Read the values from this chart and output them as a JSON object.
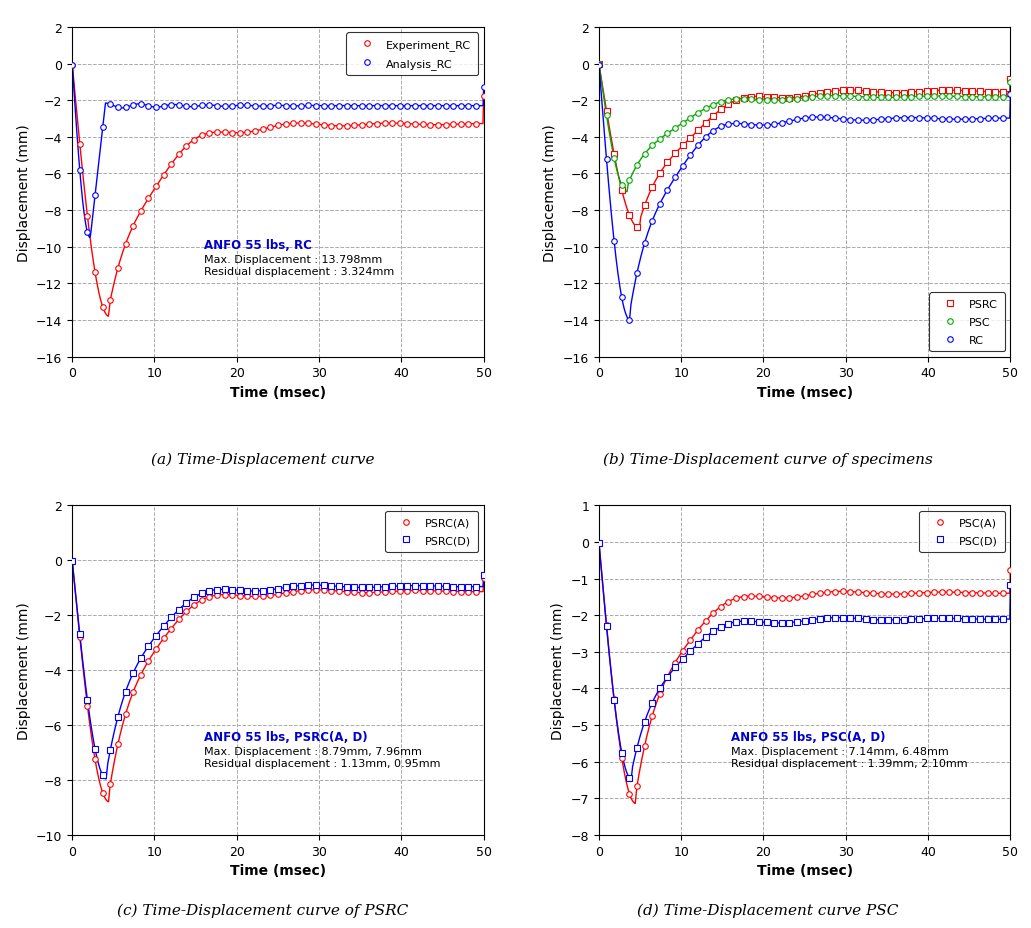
{
  "subplot_titles": [
    "(a) Time-Displacement curve",
    "(b) Time-Displacement curve of specimens",
    "(c) Time-Displacement curve of PSRC",
    "(d) Time-Displacement curve PSC"
  ],
  "xlabel": "Time (msec)",
  "ylabel": "Displacement (mm)",
  "xlim": [
    0,
    50
  ],
  "xticks": [
    0,
    10,
    20,
    30,
    40,
    50
  ],
  "colors": {
    "red": "#FF0000",
    "blue": "#0000FF",
    "green": "#00AA00"
  },
  "annotation_color": "#0000CD",
  "annotation_text_color": "#000000",
  "subplot_a": {
    "ylim": [
      -16,
      2
    ],
    "yticks": [
      -16,
      -14,
      -12,
      -10,
      -8,
      -6,
      -4,
      -2,
      0,
      2
    ],
    "annotation_line1": "ANFO 55 lbs, RC",
    "annotation_line2": "Max. Displacement : 13.798mm\nResidual displacement : 3.324mm",
    "legend": [
      "Experiment_RC",
      "Analysis_RC"
    ]
  },
  "subplot_b": {
    "ylim": [
      -16,
      2
    ],
    "yticks": [
      -16,
      -14,
      -12,
      -10,
      -8,
      -6,
      -4,
      -2,
      0,
      2
    ],
    "legend": [
      "PSRC",
      "PSC",
      "RC"
    ]
  },
  "subplot_c": {
    "ylim": [
      -10,
      2
    ],
    "yticks": [
      -10,
      -8,
      -6,
      -4,
      -2,
      0,
      2
    ],
    "annotation_line1": "ANFO 55 lbs, PSRC(A, D)",
    "annotation_line2": "Max. Displacement : 8.79mm, 7.96mm\nResidual displacement : 1.13mm, 0.95mm",
    "legend": [
      "PSRC(A)",
      "PSRC(D)"
    ]
  },
  "subplot_d": {
    "ylim": [
      -8,
      1
    ],
    "yticks": [
      -8,
      -7,
      -6,
      -5,
      -4,
      -3,
      -2,
      -1,
      0,
      1
    ],
    "annotation_line1": "ANFO 55 lbs, PSC(A, D)",
    "annotation_line2": "Max. Displacement : 7.14mm, 6.48mm\nResidual displacement : 1.39mm, 2.10mm",
    "legend": [
      "PSC(A)",
      "PSC(D)"
    ]
  }
}
